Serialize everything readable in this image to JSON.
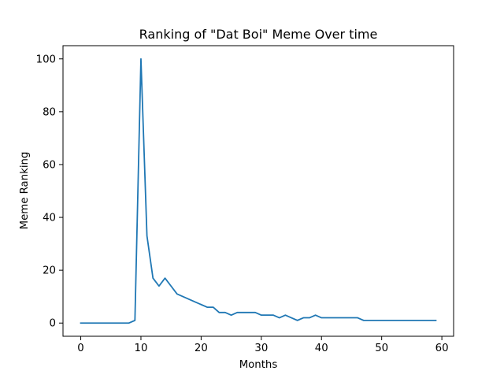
{
  "chart_data": {
    "type": "line",
    "title": "Ranking of \"Dat Boi\" Meme Over time",
    "xlabel": "Months",
    "ylabel": "Meme Ranking",
    "xlim": [
      -2.95,
      61.95
    ],
    "ylim": [
      -5,
      105
    ],
    "xticks": [
      0,
      10,
      20,
      30,
      40,
      50,
      60
    ],
    "yticks": [
      0,
      20,
      40,
      60,
      80,
      100
    ],
    "grid": false,
    "color": "#1f77b4",
    "x": [
      0,
      1,
      2,
      3,
      4,
      5,
      6,
      7,
      8,
      9,
      10,
      11,
      12,
      13,
      14,
      15,
      16,
      17,
      18,
      19,
      20,
      21,
      22,
      23,
      24,
      25,
      26,
      27,
      28,
      29,
      30,
      31,
      32,
      33,
      34,
      35,
      36,
      37,
      38,
      39,
      40,
      41,
      42,
      43,
      44,
      45,
      46,
      47,
      48,
      49,
      50,
      51,
      52,
      53,
      54,
      55,
      56,
      57,
      58,
      59
    ],
    "y": [
      0,
      0,
      0,
      0,
      0,
      0,
      0,
      0,
      0,
      1,
      100,
      33,
      17,
      14,
      17,
      14,
      11,
      10,
      9,
      8,
      7,
      6,
      6,
      4,
      4,
      3,
      4,
      4,
      4,
      4,
      3,
      3,
      3,
      2,
      3,
      2,
      1,
      2,
      2,
      3,
      2,
      2,
      2,
      2,
      2,
      2,
      2,
      1,
      1,
      1,
      1,
      1,
      1,
      1,
      1,
      1,
      1,
      1,
      1,
      1
    ]
  }
}
